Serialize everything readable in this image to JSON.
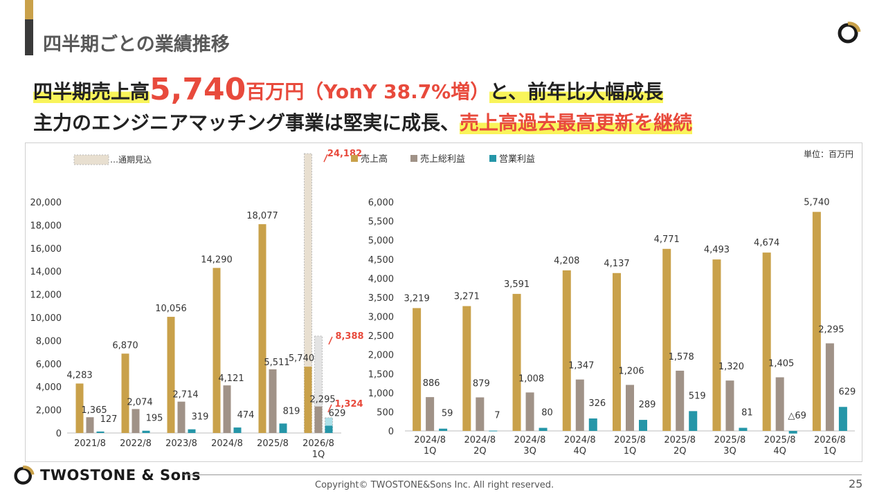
{
  "page": {
    "title": "四半期ごとの業績推移",
    "headline1": {
      "part1": "四半期売上高",
      "big": "5,740",
      "part2": "百万円（YonY 38.7%増）",
      "part3": "と、前年比大幅成長"
    },
    "headline2": {
      "part1": "主力のエンジニアマッチング事業は堅実に成長、",
      "part2": "売上高過去最高更新を継続"
    },
    "unit_label": "単位：百万円",
    "copyright": "Copyright© TWOSTONE&Sons Inc. All right reserved.",
    "page_number": "25",
    "brand": "TWOSTONE & Sons"
  },
  "colors": {
    "sales": "#c9a14a",
    "gross": "#a09287",
    "op": "#2596a8",
    "forecast": "#e8dfd0",
    "highlight": "#f9f45a",
    "accent_red": "#e84a3c"
  },
  "chart_data": [
    {
      "type": "bar",
      "title": "",
      "legend_forecast": "…通期見込",
      "categories": [
        "2021/8",
        "2022/8",
        "2023/8",
        "2024/8",
        "2025/8",
        "2026/8\n1Q"
      ],
      "series": [
        {
          "name": "売上高",
          "values": [
            4283,
            6870,
            10056,
            14290,
            18077,
            5740
          ],
          "labels": [
            "4,283",
            "6,870",
            "10,056",
            "14,290",
            "18,077",
            "5,740"
          ]
        },
        {
          "name": "売上総利益",
          "values": [
            1365,
            2074,
            2714,
            4121,
            5511,
            2295
          ],
          "labels": [
            "1,365",
            "2,074",
            "2,714",
            "4,121",
            "5,511",
            "2,295"
          ]
        },
        {
          "name": "営業利益",
          "values": [
            127,
            195,
            319,
            474,
            819,
            629
          ],
          "labels": [
            "127",
            "195",
            "319",
            "474",
            "819",
            "629"
          ]
        }
      ],
      "forecast": {
        "category": "2026/8\n1Q",
        "values": [
          24182,
          8388,
          1324
        ],
        "labels": [
          "24,182",
          "8,388",
          "1,324"
        ]
      },
      "ylim": [
        0,
        20000
      ],
      "yticks": [
        0,
        2000,
        4000,
        6000,
        8000,
        10000,
        12000,
        14000,
        16000,
        18000,
        20000
      ],
      "ytick_labels": [
        "0",
        "2,000",
        "4,000",
        "6,000",
        "8,000",
        "10,000",
        "12,000",
        "14,000",
        "16,000",
        "18,000",
        "20,000"
      ]
    },
    {
      "type": "bar",
      "title": "",
      "categories": [
        "2024/8\n1Q",
        "2024/8\n2Q",
        "2024/8\n3Q",
        "2024/8\n4Q",
        "2025/8\n1Q",
        "2025/8\n2Q",
        "2025/8\n3Q",
        "2025/8\n4Q",
        "2026/8\n1Q"
      ],
      "series": [
        {
          "name": "売上高",
          "values": [
            3219,
            3271,
            3591,
            4208,
            4137,
            4771,
            4493,
            4674,
            5740
          ],
          "labels": [
            "3,219",
            "3,271",
            "3,591",
            "4,208",
            "4,137",
            "4,771",
            "4,493",
            "4,674",
            "5,740"
          ]
        },
        {
          "name": "売上総利益",
          "values": [
            886,
            879,
            1008,
            1347,
            1206,
            1578,
            1320,
            1405,
            2295
          ],
          "labels": [
            "886",
            "879",
            "1,008",
            "1,347",
            "1,206",
            "1,578",
            "1,320",
            "1,405",
            "2,295"
          ]
        },
        {
          "name": "営業利益",
          "values": [
            59,
            7,
            80,
            326,
            289,
            519,
            81,
            -69,
            629
          ],
          "labels": [
            "59",
            "7",
            "80",
            "326",
            "289",
            "519",
            "81",
            "△69",
            "629"
          ]
        }
      ],
      "ylim": [
        0,
        6000
      ],
      "yticks": [
        0,
        500,
        1000,
        1500,
        2000,
        2500,
        3000,
        3500,
        4000,
        4500,
        5000,
        5500,
        6000
      ],
      "ytick_labels": [
        "0",
        "500",
        "1,000",
        "1,500",
        "2,000",
        "2,500",
        "3,000",
        "3,500",
        "4,000",
        "4,500",
        "5,000",
        "5,500",
        "6,000"
      ]
    }
  ]
}
